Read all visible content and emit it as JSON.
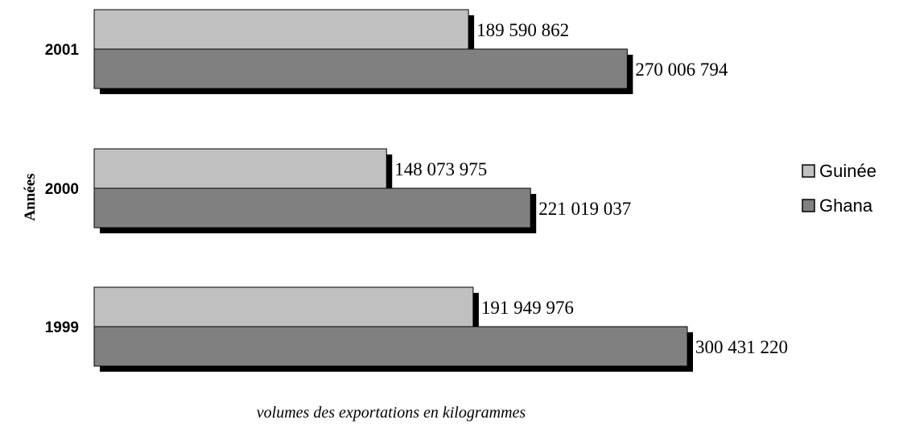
{
  "chart_data": {
    "type": "bar",
    "orientation": "horizontal",
    "categories": [
      "2001",
      "2000",
      "1999"
    ],
    "series": [
      {
        "name": "Guinée",
        "color": "#c0c0c0",
        "values": [
          189590862,
          148073975,
          191949976
        ],
        "labels": [
          "189 590 862",
          "148 073 975",
          "191 949 976"
        ]
      },
      {
        "name": "Ghana",
        "color": "#808080",
        "values": [
          270006794,
          221019037,
          300431220
        ],
        "labels": [
          "270 006 794",
          "221 019 037",
          "300 431 220"
        ]
      }
    ],
    "ylabel": "Années",
    "xlabel": "volumes des exportations en kilogrammes",
    "xlim": [
      0,
      300431220
    ],
    "grid": false,
    "legend": "right",
    "shadow_color": "#000000"
  }
}
